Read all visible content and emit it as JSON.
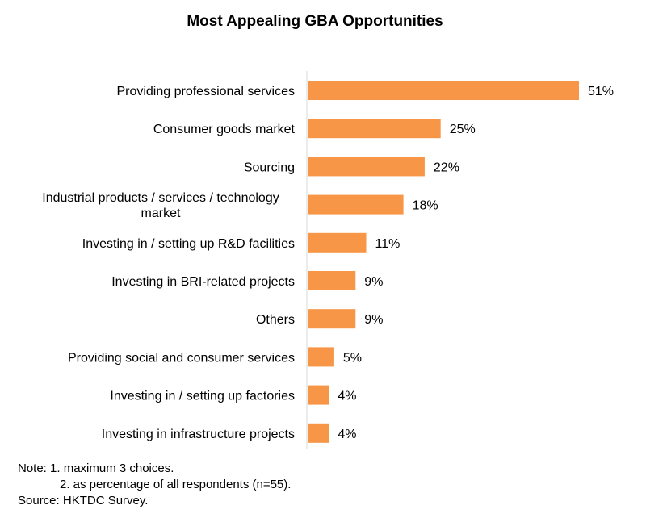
{
  "chart_data": {
    "type": "bar",
    "orientation": "horizontal",
    "title": "Most Appealing GBA Opportunities",
    "xlabel": "",
    "ylabel": "",
    "xlim": [
      0,
      51
    ],
    "grid": false,
    "color": "#F79646",
    "value_suffix": "%",
    "categories": [
      [
        "Providing professional services"
      ],
      [
        "Consumer goods market"
      ],
      [
        "Sourcing"
      ],
      [
        "Industrial products / services / technology",
        "market"
      ],
      [
        "Investing in / setting up R&D facilities"
      ],
      [
        "Investing in BRI-related projects"
      ],
      [
        "Others"
      ],
      [
        "Providing social and consumer services"
      ],
      [
        "Investing in / setting up factories"
      ],
      [
        "Investing in infrastructure projects"
      ]
    ],
    "values": [
      51,
      25,
      22,
      18,
      11,
      9,
      9,
      5,
      4,
      4
    ]
  },
  "notes": {
    "line1": "Note: 1. maximum 3 choices.",
    "line2": "2. as percentage of all respondents (n=55).",
    "source": "Source: HKTDC Survey."
  }
}
